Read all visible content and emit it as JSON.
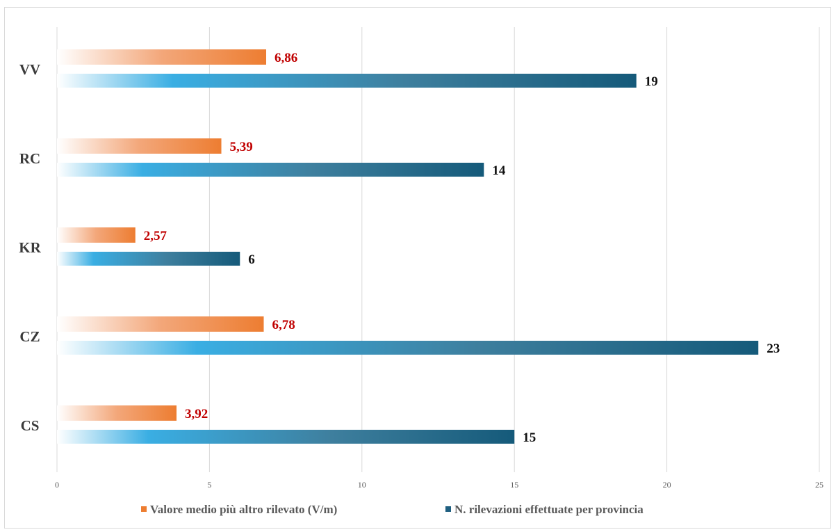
{
  "chart_data": {
    "type": "bar",
    "orientation": "horizontal",
    "categories": [
      "VV",
      "RC",
      "KR",
      "CZ",
      "CS"
    ],
    "series": [
      {
        "name": "Valore medio più altro rilevato (V/m)",
        "values": [
          6.86,
          5.39,
          2.57,
          6.78,
          3.92
        ],
        "labels": [
          "6,86",
          "5,39",
          "2,57",
          "6,78",
          "3,92"
        ],
        "color": "#ed7d31"
      },
      {
        "name": "N. rilevazioni effettuate per provincia",
        "values": [
          19,
          14,
          6,
          23,
          15
        ],
        "labels": [
          "19",
          "14",
          "6",
          "23",
          "15"
        ],
        "color": "#1f5f80"
      }
    ],
    "xlim": [
      0,
      25
    ],
    "xticks": [
      "0",
      "5",
      "10",
      "15",
      "20",
      "25"
    ],
    "grid": true,
    "legend": "bottom"
  }
}
